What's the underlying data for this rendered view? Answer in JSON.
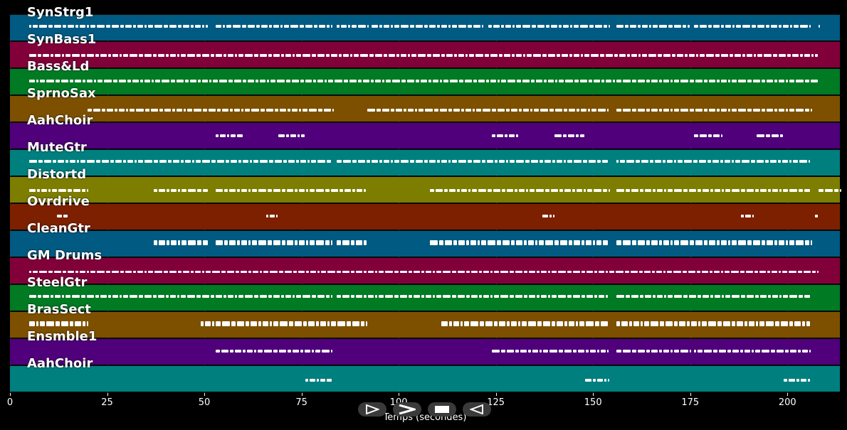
{
  "x_axis": {
    "label": "Temps (secondes)",
    "ticks": [
      "0",
      "25",
      "50",
      "75",
      "100",
      "125",
      "150",
      "175",
      "200"
    ],
    "tick_values": [
      0,
      25,
      50,
      75,
      100,
      125,
      150,
      175,
      200
    ],
    "range": [
      0,
      213.5
    ]
  },
  "tracks": [
    {
      "name": "SynStrg1",
      "color": "#005a82"
    },
    {
      "name": "SynBass1",
      "color": "#82003a"
    },
    {
      "name": "Bass&Ld",
      "color": "#007a23"
    },
    {
      "name": "SprnoSax",
      "color": "#7d5000"
    },
    {
      "name": "AahChoir",
      "color": "#4f007a"
    },
    {
      "name": "MuteGtr",
      "color": "#007f7f"
    },
    {
      "name": "Distortd",
      "color": "#7d7d00"
    },
    {
      "name": "Ovrdrive",
      "color": "#7d2000"
    },
    {
      "name": "CleanGtr",
      "color": "#005a82"
    },
    {
      "name": "GM Drums",
      "color": "#82003a"
    },
    {
      "name": "SteelGtr",
      "color": "#007a23"
    },
    {
      "name": "BrasSect",
      "color": "#7d5000"
    },
    {
      "name": "Ensmble1",
      "color": "#4f007a"
    },
    {
      "name": "AahChoir",
      "color": "#007f7f"
    }
  ],
  "note_segments": [
    [
      [
        5,
        51
      ],
      [
        53,
        83
      ],
      [
        84,
        92
      ],
      [
        93,
        122
      ],
      [
        123,
        154
      ],
      [
        156,
        175
      ],
      [
        176,
        206
      ],
      [
        208,
        208.5
      ]
    ],
    [
      [
        5,
        208
      ]
    ],
    [
      [
        5,
        208
      ]
    ],
    [
      [
        20,
        83
      ],
      [
        92,
        154
      ],
      [
        156,
        206
      ]
    ],
    [
      [
        53,
        60
      ],
      [
        69,
        76
      ],
      [
        124,
        131
      ],
      [
        140,
        148
      ],
      [
        176,
        183
      ],
      [
        192,
        199
      ]
    ],
    [
      [
        5,
        83
      ],
      [
        84,
        154
      ],
      [
        156,
        206
      ]
    ],
    [
      [
        5,
        20
      ],
      [
        37,
        51
      ],
      [
        53,
        92
      ],
      [
        108,
        154
      ],
      [
        156,
        206
      ],
      [
        208,
        213.5
      ]
    ],
    [
      [
        12,
        15
      ],
      [
        66,
        69
      ],
      [
        137,
        140
      ],
      [
        188,
        191
      ],
      [
        207,
        208
      ]
    ],
    [
      [
        37,
        51
      ],
      [
        53,
        83
      ],
      [
        84,
        92
      ],
      [
        108,
        154
      ],
      [
        156,
        206
      ]
    ],
    [
      [
        5,
        208
      ]
    ],
    [
      [
        5,
        83
      ],
      [
        84,
        154
      ],
      [
        156,
        206
      ]
    ],
    [
      [
        5,
        20
      ],
      [
        49,
        92
      ],
      [
        111,
        154
      ],
      [
        156,
        206
      ]
    ],
    [
      [
        53,
        83
      ],
      [
        124,
        154
      ],
      [
        156,
        175
      ],
      [
        176,
        206
      ]
    ],
    [
      [
        76,
        83
      ],
      [
        148,
        154
      ],
      [
        199,
        206
      ]
    ]
  ],
  "controls": [
    {
      "name": "play-button",
      "icon": "play-icon"
    },
    {
      "name": "forward-button",
      "icon": "forward-icon"
    },
    {
      "name": "stop-button",
      "icon": "stop-icon"
    },
    {
      "name": "rewind-button",
      "icon": "rewind-icon"
    }
  ]
}
